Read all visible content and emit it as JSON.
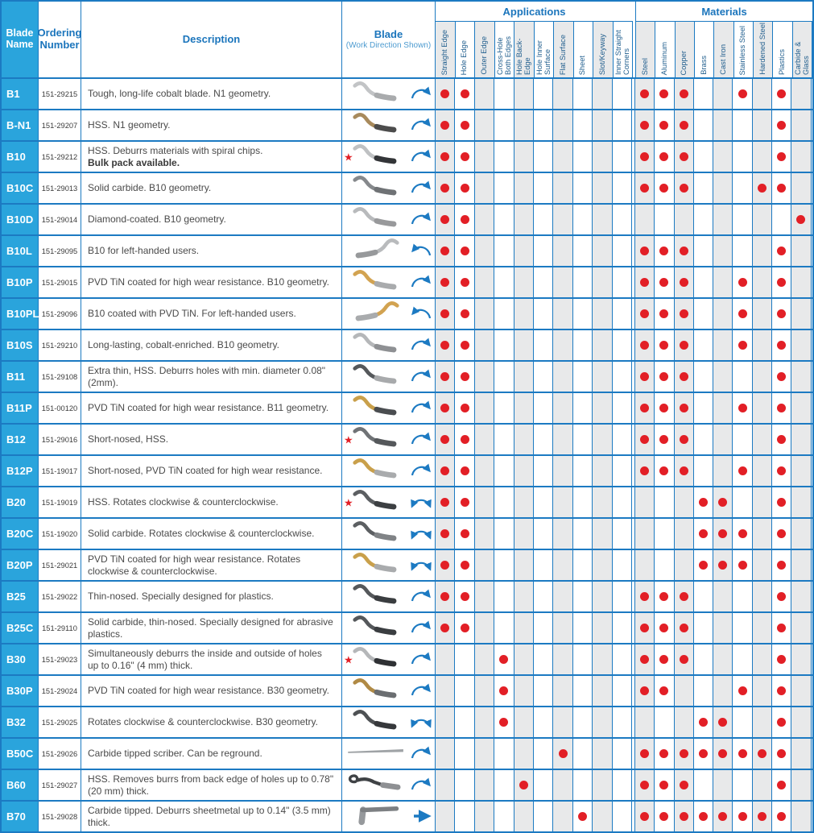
{
  "header": {
    "blade_name": "Blade Name",
    "ordering_number": "Ordering Number",
    "description": "Description",
    "blade_title": "Blade",
    "blade_subtitle": "(Work Direction Shown)",
    "applications_label": "Applications",
    "materials_label": "Materials",
    "application_columns": [
      "Straight Edge",
      "Hole Edge",
      "Outer Edge",
      "Cross-Hole Both Edges",
      "Hole Back-Edge",
      "Hole Inner Surface",
      "Flat Surface",
      "Sheet",
      "Slot/Keyway",
      "Inner Straight Corners"
    ],
    "material_columns": [
      "Steel",
      "Aluminum",
      "Copper",
      "Brass",
      "Cast Iron",
      "Stainless Steel",
      "Hardened Steel",
      "Plastics",
      "Carbide & Glass"
    ]
  },
  "colors": {
    "border_blue": "#1c7ac2",
    "cyan": "#2aa4dc",
    "header_text_blue": "#1b75bc",
    "dot_red": "#e21f26",
    "column_shade_gray": "#e8e9ea",
    "arrow_blue": "#1c7ac2"
  },
  "legend": {
    "star_icon_meaning": "red-star-marker"
  },
  "rows": [
    {
      "name": "B1",
      "order": "151-29215",
      "desc": "Tough, long-life cobalt blade. N1 geometry.",
      "star": false,
      "arrow": "cw",
      "blade": {
        "shape": "s",
        "mirror": false,
        "color": "#c2c4c6",
        "tip": "#a9abad"
      },
      "apps": [
        1,
        1,
        0,
        0,
        0,
        0,
        0,
        0,
        0,
        0
      ],
      "mats": [
        1,
        1,
        1,
        0,
        0,
        1,
        0,
        1,
        0
      ]
    },
    {
      "name": "B-N1",
      "order": "151-29207",
      "desc": "HSS. N1 geometry.",
      "star": false,
      "arrow": "cw",
      "blade": {
        "shape": "s",
        "mirror": false,
        "color": "#a88a5c",
        "tip": "#4c4c4c"
      },
      "apps": [
        1,
        1,
        0,
        0,
        0,
        0,
        0,
        0,
        0,
        0
      ],
      "mats": [
        1,
        1,
        1,
        0,
        0,
        0,
        0,
        1,
        0
      ]
    },
    {
      "name": "B10",
      "order": "151-29212",
      "desc": "HSS. Deburrs materials with spiral chips.",
      "desc_bold": "Bulk pack available.",
      "star": true,
      "arrow": "cw",
      "blade": {
        "shape": "s",
        "mirror": false,
        "color": "#bfc1c3",
        "tip": "#333538"
      },
      "apps": [
        1,
        1,
        0,
        0,
        0,
        0,
        0,
        0,
        0,
        0
      ],
      "mats": [
        1,
        1,
        1,
        0,
        0,
        0,
        0,
        1,
        0
      ]
    },
    {
      "name": "B10C",
      "order": "151-29013",
      "desc": "Solid carbide. B10 geometry.",
      "star": false,
      "arrow": "cw",
      "blade": {
        "shape": "s",
        "mirror": false,
        "color": "#86898c",
        "tip": "#6f7275"
      },
      "apps": [
        1,
        1,
        0,
        0,
        0,
        0,
        0,
        0,
        0,
        0
      ],
      "mats": [
        1,
        1,
        1,
        0,
        0,
        0,
        1,
        1,
        0
      ]
    },
    {
      "name": "B10D",
      "order": "151-29014",
      "desc": "Diamond-coated. B10 geometry.",
      "star": false,
      "arrow": "cw",
      "blade": {
        "shape": "s",
        "mirror": false,
        "color": "#b8babc",
        "tip": "#98999b"
      },
      "apps": [
        1,
        1,
        0,
        0,
        0,
        0,
        0,
        0,
        0,
        0
      ],
      "mats": [
        0,
        0,
        0,
        0,
        0,
        0,
        0,
        0,
        1
      ]
    },
    {
      "name": "B10L",
      "order": "151-29095",
      "desc": "B10 for left-handed users.",
      "star": false,
      "arrow": "ccw",
      "blade": {
        "shape": "s",
        "mirror": true,
        "color": "#b9bbbd",
        "tip": "#97999b"
      },
      "apps": [
        1,
        1,
        0,
        0,
        0,
        0,
        0,
        0,
        0,
        0
      ],
      "mats": [
        1,
        1,
        1,
        0,
        0,
        0,
        0,
        1,
        0
      ]
    },
    {
      "name": "B10P",
      "order": "151-29015",
      "desc": "PVD TiN coated for high wear resistance. B10 geometry.",
      "star": false,
      "arrow": "cw",
      "blade": {
        "shape": "s",
        "mirror": false,
        "color": "#d2a351",
        "tip": "#a9abad"
      },
      "apps": [
        1,
        1,
        0,
        0,
        0,
        0,
        0,
        0,
        0,
        0
      ],
      "mats": [
        1,
        1,
        1,
        0,
        0,
        1,
        0,
        1,
        0
      ]
    },
    {
      "name": "B10PL",
      "order": "151-29096",
      "desc": "B10 coated with PVD TiN. For left-handed users.",
      "star": false,
      "arrow": "ccw",
      "blade": {
        "shape": "s",
        "mirror": true,
        "color": "#d2a351",
        "tip": "#a9abad"
      },
      "apps": [
        1,
        1,
        0,
        0,
        0,
        0,
        0,
        0,
        0,
        0
      ],
      "mats": [
        1,
        1,
        1,
        0,
        0,
        1,
        0,
        1,
        0
      ]
    },
    {
      "name": "B10S",
      "order": "151-29210",
      "desc": "Long-lasting, cobalt-enriched. B10 geometry.",
      "star": false,
      "arrow": "cw",
      "blade": {
        "shape": "s",
        "mirror": false,
        "color": "#b5b7b9",
        "tip": "#8e9093"
      },
      "apps": [
        1,
        1,
        0,
        0,
        0,
        0,
        0,
        0,
        0,
        0
      ],
      "mats": [
        1,
        1,
        1,
        0,
        0,
        1,
        0,
        1,
        0
      ]
    },
    {
      "name": "B11",
      "order": "151-29108",
      "desc": "Extra thin, HSS. Deburrs holes with min. diameter 0.08\" (2mm).",
      "star": false,
      "arrow": "cw",
      "blade": {
        "shape": "s",
        "mirror": false,
        "color": "#55585b",
        "tip": "#a8aaac"
      },
      "apps": [
        1,
        1,
        0,
        0,
        0,
        0,
        0,
        0,
        0,
        0
      ],
      "mats": [
        1,
        1,
        1,
        0,
        0,
        0,
        0,
        1,
        0
      ]
    },
    {
      "name": "B11P",
      "order": "151-00120",
      "desc": "PVD TiN coated for high wear resistance. B11 geometry.",
      "star": false,
      "arrow": "cw",
      "blade": {
        "shape": "s",
        "mirror": false,
        "color": "#c9a04b",
        "tip": "#4a4d50"
      },
      "apps": [
        1,
        1,
        0,
        0,
        0,
        0,
        0,
        0,
        0,
        0
      ],
      "mats": [
        1,
        1,
        1,
        0,
        0,
        1,
        0,
        1,
        0
      ]
    },
    {
      "name": "B12",
      "order": "151-29016",
      "desc": "Short-nosed, HSS.",
      "star": true,
      "arrow": "cw",
      "blade": {
        "shape": "s",
        "mirror": false,
        "color": "#707376",
        "tip": "#55585b"
      },
      "apps": [
        1,
        1,
        0,
        0,
        0,
        0,
        0,
        0,
        0,
        0
      ],
      "mats": [
        1,
        1,
        1,
        0,
        0,
        0,
        0,
        1,
        0
      ]
    },
    {
      "name": "B12P",
      "order": "151-19017",
      "desc": "Short-nosed, PVD TiN coated for high wear resistance.",
      "star": false,
      "arrow": "cw",
      "blade": {
        "shape": "s",
        "mirror": false,
        "color": "#c9a04b",
        "tip": "#a9abad"
      },
      "apps": [
        1,
        1,
        0,
        0,
        0,
        0,
        0,
        0,
        0,
        0
      ],
      "mats": [
        1,
        1,
        1,
        0,
        0,
        1,
        0,
        1,
        0
      ]
    },
    {
      "name": "B20",
      "order": "151-19019",
      "desc": "HSS. Rotates clockwise & counterclockwise.",
      "star": true,
      "arrow": "both",
      "blade": {
        "shape": "s",
        "mirror": false,
        "color": "#5c5f62",
        "tip": "#3c3f42"
      },
      "apps": [
        1,
        1,
        0,
        0,
        0,
        0,
        0,
        0,
        0,
        0
      ],
      "mats": [
        0,
        0,
        0,
        1,
        1,
        0,
        0,
        1,
        0
      ]
    },
    {
      "name": "B20C",
      "order": "151-19020",
      "desc": "Solid carbide. Rotates clockwise & counterclockwise.",
      "star": false,
      "arrow": "both",
      "blade": {
        "shape": "s",
        "mirror": false,
        "color": "#5c5f62",
        "tip": "#808386"
      },
      "apps": [
        1,
        1,
        0,
        0,
        0,
        0,
        0,
        0,
        0,
        0
      ],
      "mats": [
        0,
        0,
        0,
        1,
        1,
        1,
        0,
        1,
        0
      ]
    },
    {
      "name": "B20P",
      "order": "151-29021",
      "desc": "PVD TiN coated for high wear resistance. Rotates clockwise & counterclockwise.",
      "star": false,
      "arrow": "both",
      "blade": {
        "shape": "s",
        "mirror": false,
        "color": "#c9a04b",
        "tip": "#a9abad"
      },
      "apps": [
        1,
        1,
        0,
        0,
        0,
        0,
        0,
        0,
        0,
        0
      ],
      "mats": [
        0,
        0,
        0,
        1,
        1,
        1,
        0,
        1,
        0
      ]
    },
    {
      "name": "B25",
      "order": "151-29022",
      "desc": "Thin-nosed. Specially designed for plastics.",
      "star": false,
      "arrow": "cw",
      "blade": {
        "shape": "s",
        "mirror": false,
        "color": "#55585b",
        "tip": "#3a3d40"
      },
      "apps": [
        1,
        1,
        0,
        0,
        0,
        0,
        0,
        0,
        0,
        0
      ],
      "mats": [
        1,
        1,
        1,
        0,
        0,
        0,
        0,
        1,
        0
      ]
    },
    {
      "name": "B25C",
      "order": "151-29110",
      "desc": "Solid carbide, thin-nosed. Specially designed for abrasive plastics.",
      "star": false,
      "arrow": "cw",
      "blade": {
        "shape": "s",
        "mirror": false,
        "color": "#55585b",
        "tip": "#3a3d40"
      },
      "apps": [
        1,
        1,
        0,
        0,
        0,
        0,
        0,
        0,
        0,
        0
      ],
      "mats": [
        1,
        1,
        1,
        0,
        0,
        0,
        0,
        1,
        0
      ]
    },
    {
      "name": "B30",
      "order": "151-29023",
      "desc": "Simultaneously deburrs the inside and outside of holes up to 0.16\" (4 mm) thick.",
      "star": true,
      "arrow": "cw",
      "blade": {
        "shape": "s",
        "mirror": false,
        "color": "#b5b7b9",
        "tip": "#2f3134"
      },
      "apps": [
        0,
        0,
        0,
        1,
        0,
        0,
        0,
        0,
        0,
        0
      ],
      "mats": [
        1,
        1,
        1,
        0,
        0,
        0,
        0,
        1,
        0
      ]
    },
    {
      "name": "B30P",
      "order": "151-29024",
      "desc": "PVD TiN coated for high wear resistance. B30 geometry.",
      "star": false,
      "arrow": "cw",
      "blade": {
        "shape": "s",
        "mirror": false,
        "color": "#b08a45",
        "tip": "#6b6e71"
      },
      "apps": [
        0,
        0,
        0,
        1,
        0,
        0,
        0,
        0,
        0,
        0
      ],
      "mats": [
        1,
        1,
        0,
        0,
        0,
        1,
        0,
        1,
        0
      ]
    },
    {
      "name": "B32",
      "order": "151-29025",
      "desc": "Rotates clockwise & counterclockwise. B30 geometry.",
      "star": false,
      "arrow": "both",
      "blade": {
        "shape": "s",
        "mirror": false,
        "color": "#4e5154",
        "tip": "#36383b"
      },
      "apps": [
        0,
        0,
        0,
        1,
        0,
        0,
        0,
        0,
        0,
        0
      ],
      "mats": [
        0,
        0,
        0,
        1,
        1,
        0,
        0,
        1,
        0
      ]
    },
    {
      "name": "B50C",
      "order": "151-29026",
      "desc": "Carbide tipped scriber. Can be reground.",
      "star": false,
      "arrow": "cw",
      "blade": {
        "shape": "scriber",
        "mirror": false,
        "color": "#9fa3a6",
        "tip": "#85898c"
      },
      "apps": [
        0,
        0,
        0,
        0,
        0,
        0,
        1,
        0,
        0,
        0
      ],
      "mats": [
        1,
        1,
        1,
        1,
        1,
        1,
        1,
        1,
        0
      ]
    },
    {
      "name": "B60",
      "order": "151-29027",
      "desc": "HSS. Removes burrs from back edge of holes up to 0.78\" (20 mm) thick.",
      "star": false,
      "arrow": "cw",
      "blade": {
        "shape": "hook",
        "mirror": false,
        "color": "#3f4245",
        "tip": "#8e9093"
      },
      "apps": [
        0,
        0,
        0,
        0,
        1,
        0,
        0,
        0,
        0,
        0
      ],
      "mats": [
        1,
        1,
        1,
        0,
        0,
        0,
        0,
        1,
        0
      ]
    },
    {
      "name": "B70",
      "order": "151-29028",
      "desc": "Carbide tipped. Deburrs sheetmetal up to 0.14\" (3.5 mm) thick.",
      "star": false,
      "arrow": "line",
      "blade": {
        "shape": "L",
        "mirror": false,
        "color": "#96999c",
        "tip": "#7d8083"
      },
      "apps": [
        0,
        0,
        0,
        0,
        0,
        0,
        0,
        1,
        0,
        0
      ],
      "mats": [
        1,
        1,
        1,
        1,
        1,
        1,
        1,
        1,
        0
      ]
    }
  ]
}
